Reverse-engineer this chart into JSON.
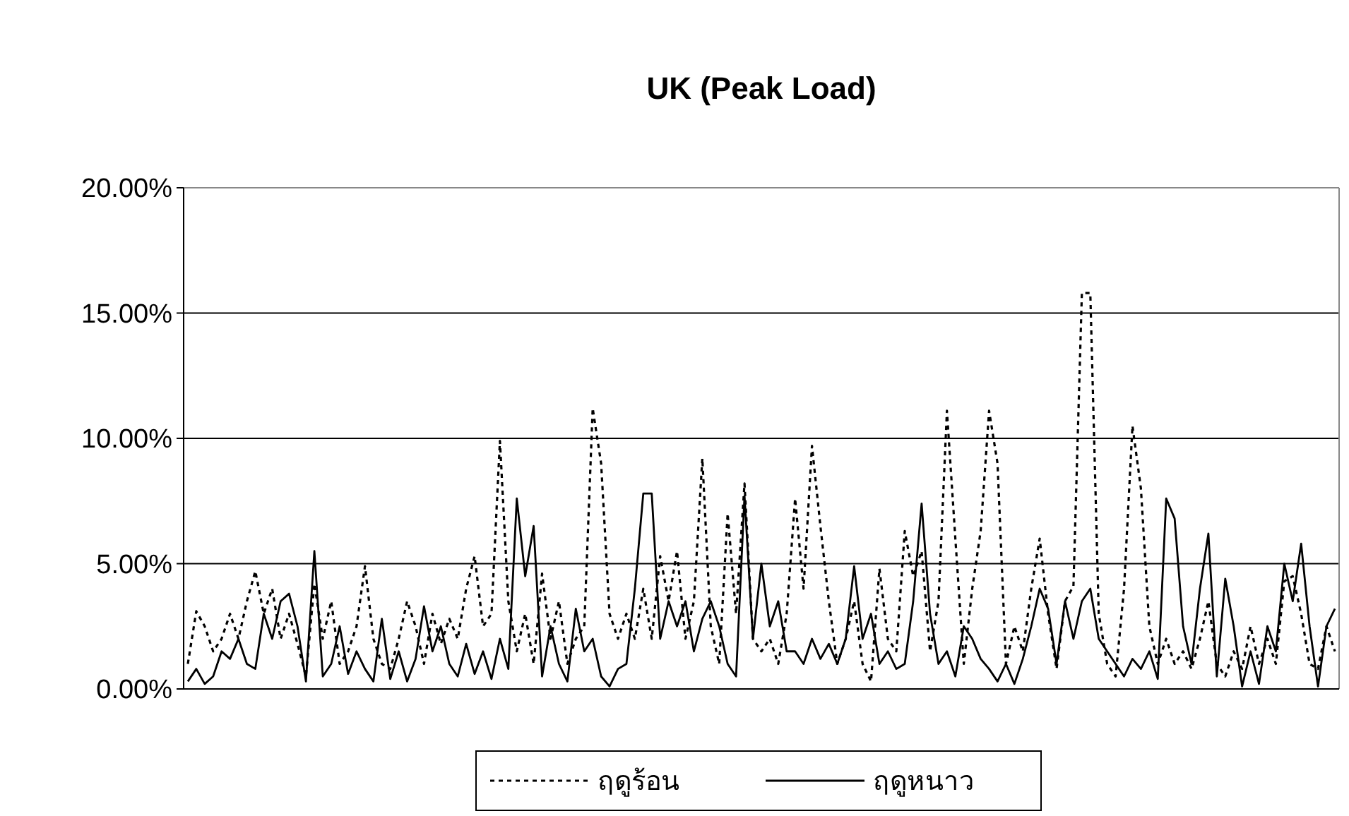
{
  "chart_data": {
    "type": "line",
    "title": "UK (Peak Load)",
    "categories": [
      null,
      null,
      null,
      null,
      null,
      null,
      null,
      null,
      null,
      null,
      null,
      null,
      null,
      null,
      null,
      null,
      null,
      null,
      null,
      null,
      null,
      null,
      null,
      null,
      null,
      null,
      null,
      null,
      null,
      null,
      null,
      null,
      null,
      null,
      null,
      null,
      null,
      null,
      null,
      null,
      null,
      null,
      null,
      null,
      null,
      null,
      null,
      null,
      null,
      null,
      null,
      null,
      null,
      null,
      null,
      null,
      null,
      null,
      null,
      null,
      null,
      null,
      null,
      null,
      null,
      null,
      null,
      null,
      null,
      null,
      null,
      null,
      null,
      null,
      null,
      null,
      null,
      null,
      null,
      null,
      null,
      null,
      null,
      null,
      null,
      null,
      null,
      null,
      null,
      null,
      null,
      null,
      null,
      null,
      null,
      null,
      null,
      null,
      null,
      null,
      null,
      null,
      null,
      null,
      null,
      null,
      null,
      null,
      null,
      null,
      null,
      null,
      null,
      null,
      null,
      null,
      null,
      null,
      null,
      null,
      null,
      null,
      null,
      null,
      null,
      null,
      null,
      null,
      null,
      null,
      null,
      null,
      null,
      null,
      null,
      null,
      null
    ],
    "series": [
      {
        "name": "ฤดูร้อน",
        "color": "#000000",
        "line_style": "dotted",
        "values": [
          1.0,
          3.1,
          2.5,
          1.5,
          2.0,
          3.0,
          2.0,
          3.5,
          4.7,
          3.0,
          4.0,
          2.0,
          3.0,
          1.8,
          0.5,
          4.2,
          2.0,
          3.5,
          1.0,
          1.5,
          2.5,
          4.9,
          2.0,
          1.0,
          0.8,
          2.0,
          3.5,
          2.5,
          1.0,
          3.0,
          1.8,
          2.8,
          2.0,
          4.0,
          5.3,
          2.5,
          3.0,
          9.9,
          3.5,
          1.5,
          3.0,
          1.0,
          4.6,
          2.0,
          3.5,
          1.0,
          2.0,
          2.5,
          11.2,
          9.0,
          3.0,
          2.0,
          3.0,
          2.0,
          4.0,
          2.0,
          5.3,
          3.5,
          5.5,
          2.0,
          3.5,
          9.2,
          2.5,
          1.0,
          7.0,
          3.0,
          8.2,
          2.0,
          1.5,
          2.0,
          1.0,
          3.0,
          7.6,
          4.0,
          9.7,
          6.5,
          3.5,
          1.0,
          2.0,
          3.5,
          1.0,
          0.3,
          4.8,
          2.0,
          1.5,
          6.3,
          4.5,
          5.5,
          1.5,
          3.5,
          11.1,
          6.0,
          1.0,
          4.0,
          6.3,
          11.1,
          9.0,
          1.0,
          2.5,
          1.5,
          4.0,
          6.0,
          3.0,
          0.8,
          3.5,
          4.1,
          15.8,
          15.8,
          3.0,
          1.0,
          0.5,
          4.0,
          10.5,
          8.0,
          2.5,
          1.0,
          2.0,
          1.0,
          1.5,
          0.8,
          2.0,
          3.5,
          1.0,
          0.5,
          1.5,
          0.8,
          2.5,
          1.0,
          2.0,
          1.0,
          4.3,
          4.5,
          3.0,
          1.0,
          0.8,
          2.5,
          1.5
        ]
      },
      {
        "name": "ฤดูหนาว",
        "color": "#000000",
        "line_style": "solid",
        "values": [
          0.3,
          0.8,
          0.2,
          0.5,
          1.5,
          1.2,
          2.0,
          1.0,
          0.8,
          3.0,
          2.0,
          3.5,
          3.8,
          2.5,
          0.3,
          5.5,
          0.5,
          1.0,
          2.5,
          0.6,
          1.5,
          0.8,
          0.3,
          2.8,
          0.4,
          1.5,
          0.3,
          1.2,
          3.3,
          1.5,
          2.5,
          1.0,
          0.5,
          1.8,
          0.6,
          1.5,
          0.4,
          2.0,
          0.8,
          7.6,
          4.5,
          6.5,
          0.5,
          2.5,
          1.0,
          0.3,
          3.2,
          1.5,
          2.0,
          0.5,
          0.1,
          0.8,
          1.0,
          4.0,
          7.8,
          7.8,
          2.0,
          3.5,
          2.5,
          3.5,
          1.5,
          2.8,
          3.5,
          2.5,
          1.0,
          0.5,
          7.7,
          2.0,
          5.0,
          2.5,
          3.5,
          1.5,
          1.5,
          1.0,
          2.0,
          1.2,
          1.8,
          1.0,
          2.0,
          4.9,
          2.0,
          3.0,
          1.0,
          1.5,
          0.8,
          1.0,
          3.5,
          7.4,
          3.0,
          1.0,
          1.5,
          0.5,
          2.5,
          2.0,
          1.2,
          0.8,
          0.3,
          1.0,
          0.2,
          1.2,
          2.5,
          4.0,
          3.2,
          1.0,
          3.5,
          2.0,
          3.5,
          4.0,
          2.0,
          1.5,
          1.0,
          0.5,
          1.2,
          0.8,
          1.5,
          0.4,
          7.6,
          6.8,
          2.5,
          1.0,
          4.0,
          6.2,
          0.5,
          4.4,
          2.5,
          0.1,
          1.5,
          0.2,
          2.5,
          1.5,
          5.0,
          3.5,
          5.8,
          2.5,
          0.1,
          2.5,
          3.2
        ]
      }
    ],
    "ylim": [
      0,
      20
    ],
    "yticks": [
      {
        "value": 0,
        "label": "0.00%"
      },
      {
        "value": 5,
        "label": "5.00%"
      },
      {
        "value": 10,
        "label": "10.00%"
      },
      {
        "value": 15,
        "label": "15.00%"
      },
      {
        "value": 20,
        "label": "20.00%"
      }
    ],
    "grid": "y",
    "legend": "bottom",
    "tick_labels": "y"
  }
}
